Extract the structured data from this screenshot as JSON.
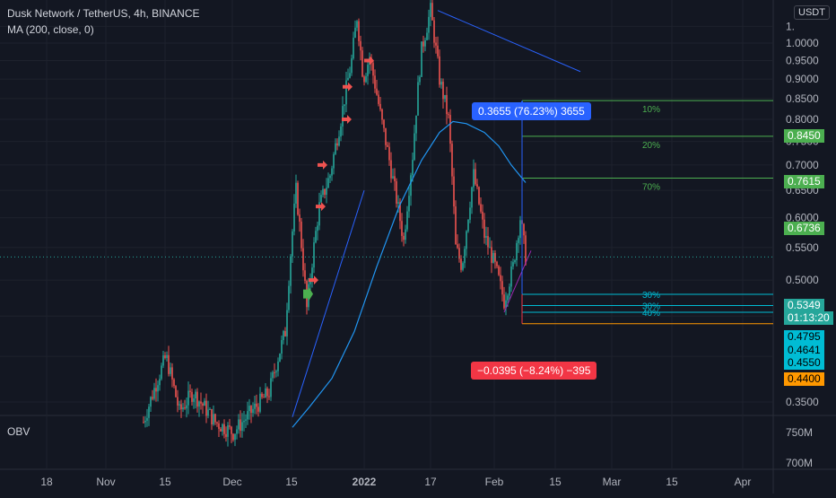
{
  "header": {
    "symbol_line": "Dusk Network / TetherUS, 4h, BINANCE",
    "ma_line": "MA (200, close, 0)",
    "currency_button": "USDT"
  },
  "colors": {
    "background": "#131722",
    "grid": "#1e222d",
    "up": "#26a69a",
    "down": "#ef5350",
    "ma": "#2196f3",
    "fib_line": "#4caf50",
    "support_line": "#00bcd4",
    "support_orange": "#ff9800",
    "trendline": "#2962ff",
    "range_up": "#2962ff",
    "range_down": "#f23645"
  },
  "price_axis": {
    "ticks": [
      "1.",
      "1.0000",
      "0.9500",
      "0.9000",
      "0.8500",
      "0.8000",
      "0.7500",
      "0.7000",
      "0.6500",
      "0.6000",
      "0.5500",
      "0.5000",
      "0.4500",
      "0.4000",
      "0.3500"
    ],
    "scale": "log"
  },
  "price_tags": [
    {
      "label": "0.8450",
      "value": 0.845,
      "color": "#4caf50"
    },
    {
      "label": "0.7615",
      "value": 0.7615,
      "color": "#4caf50"
    },
    {
      "label": "0.6736",
      "value": 0.6736,
      "color": "#4caf50"
    },
    {
      "label": "0.5349",
      "value": 0.5349,
      "color": "#26a69a",
      "sub": "01:13:20"
    },
    {
      "label": "0.4795",
      "value": 0.4795,
      "color": "#00bcd4"
    },
    {
      "label": "0.4641",
      "value": 0.4641,
      "color": "#00bcd4"
    },
    {
      "label": "0.4550",
      "value": 0.455,
      "color": "#00bcd4"
    },
    {
      "label": "0.4400",
      "value": 0.44,
      "color": "#ff9800"
    }
  ],
  "fib_labels": [
    "10%",
    "20%",
    "70%",
    "30%",
    "30%",
    "40%"
  ],
  "measure_up": "0.3655 (76.23%) 3655",
  "measure_down": "−0.0395 (−8.24%) −395",
  "obv": {
    "label": "OBV",
    "ticks": [
      "750M",
      "700M"
    ]
  },
  "time_axis": [
    "18",
    "Nov",
    "15",
    "Dec",
    "15",
    "2022",
    "17",
    "Feb",
    "15",
    "Mar",
    "15",
    "Apr"
  ],
  "chart_data": {
    "type": "candlestick",
    "title": "Dusk Network / TetherUS, 4h, BINANCE",
    "y_scale": "log",
    "ylim": [
      0.32,
      1.12
    ],
    "series": [
      {
        "name": "MA (200, close, 0)",
        "points": [
          [
            "Dec 15",
            0.32
          ],
          [
            "Dec 22",
            0.37
          ],
          [
            "Dec 30",
            0.48
          ],
          [
            "Jan 6",
            0.62
          ],
          [
            "Jan 13",
            0.72
          ],
          [
            "Jan 20",
            0.79
          ],
          [
            "Jan 27",
            0.77
          ],
          [
            "Feb 3",
            0.7
          ],
          [
            "Feb 8",
            0.67
          ]
        ]
      }
    ],
    "levels": [
      0.845,
      0.7615,
      0.6736,
      0.5349,
      0.4795,
      0.4641,
      0.455,
      0.44
    ],
    "last_price": 0.5349
  }
}
